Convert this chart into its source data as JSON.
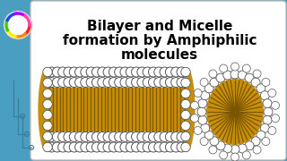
{
  "title_line1": "Bilayer and Micelle",
  "title_line2": "formation by Amphiphilic",
  "title_line3": "molecules",
  "bg_color": "#4a9fc0",
  "card_bg": "#f0f0f0",
  "head_color": "#ffffff",
  "head_edge": "#555555",
  "tail_color_light": "#c8900a",
  "tail_color_dark": "#7a5500",
  "tail_color_mid": "#b07a10"
}
